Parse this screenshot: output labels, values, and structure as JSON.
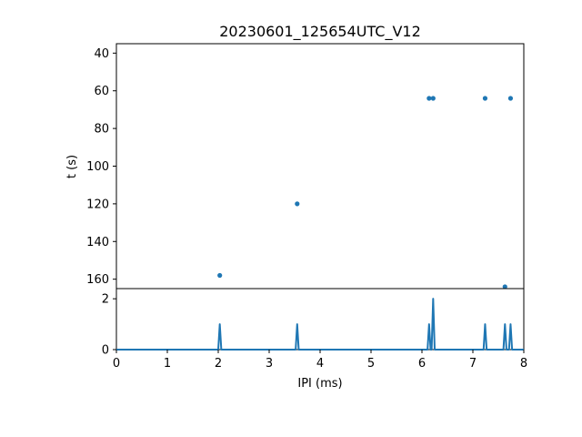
{
  "chart_data": [
    {
      "type": "scatter",
      "title": "20230601_125654UTC_V12",
      "xlabel": "",
      "ylabel": "t (s)",
      "xlim": [
        0,
        8
      ],
      "ylim": [
        165,
        35
      ],
      "y_inverted": true,
      "yticks": [
        40,
        60,
        80,
        100,
        120,
        140,
        160
      ],
      "color": "#1f77b4",
      "points": [
        {
          "x": 2.03,
          "y": 158
        },
        {
          "x": 3.55,
          "y": 120
        },
        {
          "x": 6.14,
          "y": 64
        },
        {
          "x": 6.22,
          "y": 64
        },
        {
          "x": 7.24,
          "y": 64
        },
        {
          "x": 7.63,
          "y": 164
        },
        {
          "x": 7.74,
          "y": 64
        }
      ],
      "grid": false
    },
    {
      "type": "line",
      "title": "",
      "xlabel": "IPI (ms)",
      "ylabel": "",
      "xlim": [
        0,
        8
      ],
      "ylim": [
        0,
        2.4
      ],
      "xticks": [
        0,
        1,
        2,
        3,
        4,
        5,
        6,
        7,
        8
      ],
      "yticks": [
        0,
        2
      ],
      "color": "#1f77b4",
      "spikes": [
        {
          "x": 2.03,
          "y": 1
        },
        {
          "x": 3.55,
          "y": 1
        },
        {
          "x": 6.14,
          "y": 1
        },
        {
          "x": 6.22,
          "y": 2
        },
        {
          "x": 7.24,
          "y": 1
        },
        {
          "x": 7.63,
          "y": 1
        },
        {
          "x": 7.74,
          "y": 1
        }
      ],
      "grid": false
    }
  ]
}
